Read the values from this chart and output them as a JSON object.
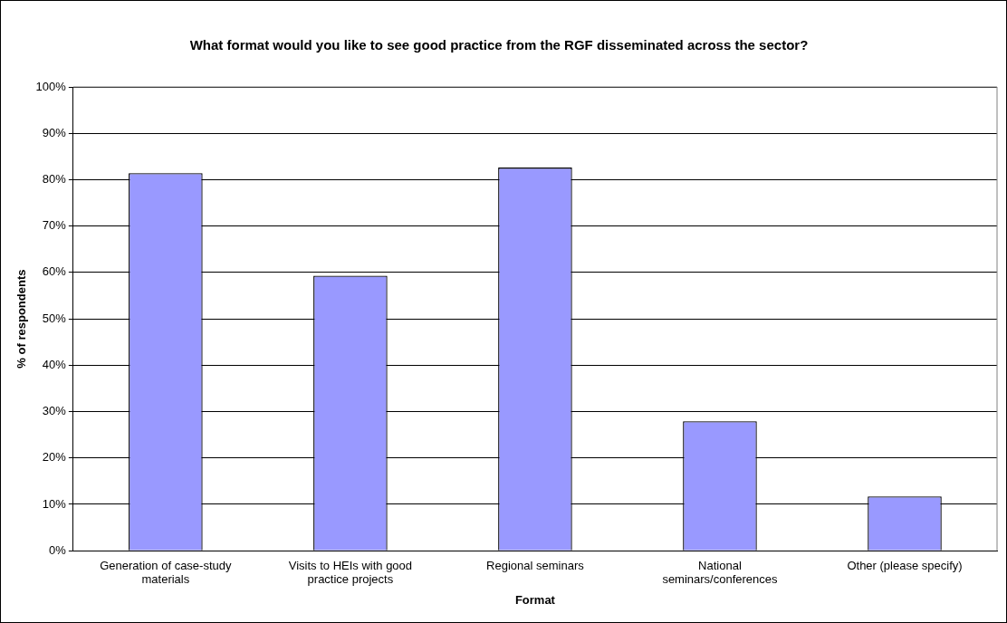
{
  "chart_data": {
    "type": "bar",
    "title": "What format would you like to see good practice from the RGF disseminated across the sector?",
    "xlabel": "Format",
    "ylabel": "% of respondents",
    "categories": [
      "Generation of case-study materials",
      "Visits to HEIs with good practice projects",
      "Regional seminars",
      "National seminars/conferences",
      "Other (please specify)"
    ],
    "values": [
      81.4,
      59.3,
      82.6,
      27.9,
      11.7
    ],
    "color": "#9999ff",
    "ylim": [
      0,
      100
    ],
    "yticks": [
      {
        "value": 0,
        "label": "0%"
      },
      {
        "value": 10,
        "label": "10%"
      },
      {
        "value": 20,
        "label": "20%"
      },
      {
        "value": 30,
        "label": "30%"
      },
      {
        "value": 40,
        "label": "40%"
      },
      {
        "value": 50,
        "label": "50%"
      },
      {
        "value": 60,
        "label": "60%"
      },
      {
        "value": 70,
        "label": "70%"
      },
      {
        "value": 80,
        "label": "80%"
      },
      {
        "value": 90,
        "label": "90%"
      },
      {
        "value": 100,
        "label": "100%"
      }
    ],
    "grid": "y",
    "legend": false
  }
}
